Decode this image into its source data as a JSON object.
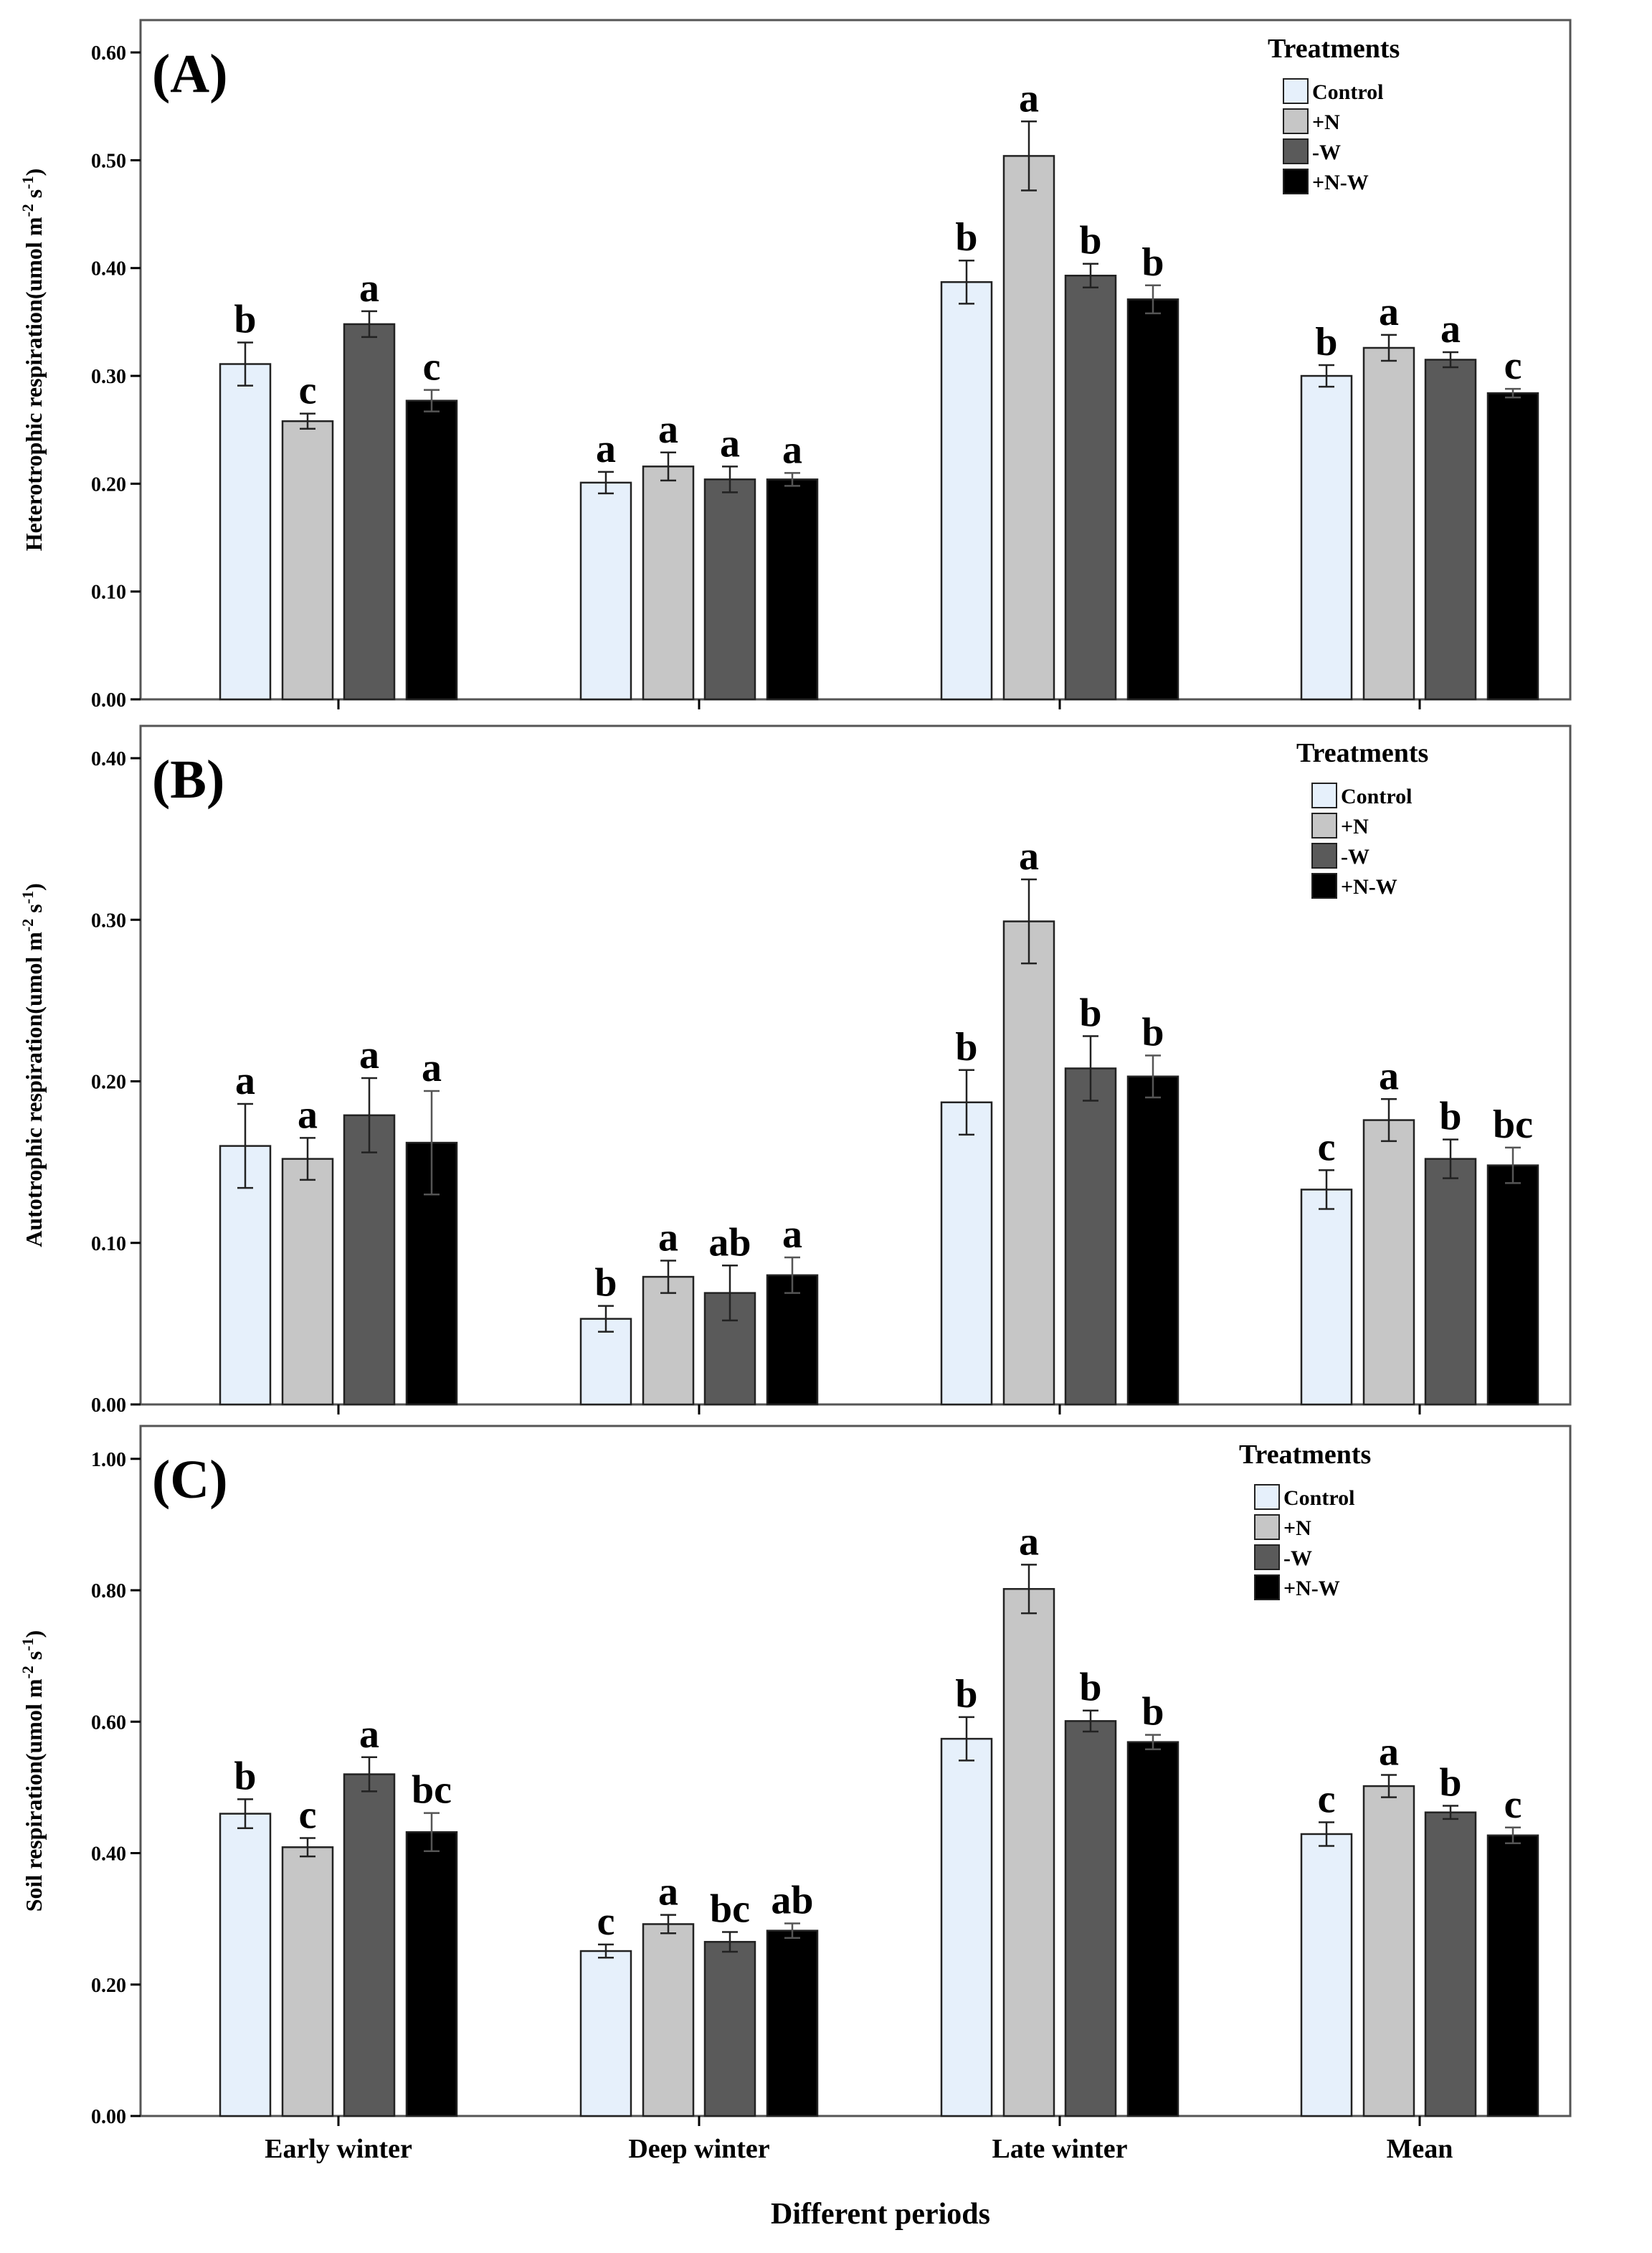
{
  "chart_data": {
    "type": "bar",
    "xlabel": "Different periods",
    "categories": [
      "Early winter",
      "Deep winter",
      "Late winter",
      "Mean"
    ],
    "legend": {
      "title": "Treatments",
      "placement": "top-right",
      "items": [
        "Control",
        "+N",
        "-W",
        "+N-W"
      ]
    },
    "colors": {
      "Control": "#e6f0fb",
      "+N": "#c6c6c6",
      "-W": "#5a5a5a",
      "+N-W": "#000000",
      "axis": "#000000",
      "frame": "#555555"
    },
    "panels": [
      {
        "panel_label": "(A)",
        "ylabel": "Heterotrophic respiration(umol m-2 s-1)",
        "ylabel_parts": [
          "Heterotrophic respiration(umol m",
          "-2",
          " s",
          "-1",
          ")"
        ],
        "ylim": [
          0,
          0.63
        ],
        "yticks": [
          "0.00",
          "0.10",
          "0.20",
          "0.30",
          "0.40",
          "0.50",
          "0.60"
        ],
        "series": [
          {
            "name": "Control",
            "values": [
              0.311,
              0.201,
              0.387,
              0.3
            ],
            "errors": [
              0.02,
              0.01,
              0.02,
              0.01
            ],
            "letters": [
              "b",
              "a",
              "b",
              "b"
            ]
          },
          {
            "name": "+N",
            "values": [
              0.258,
              0.216,
              0.504,
              0.326
            ],
            "errors": [
              0.007,
              0.013,
              0.032,
              0.012
            ],
            "letters": [
              "c",
              "a",
              "a",
              "a"
            ]
          },
          {
            "name": "-W",
            "values": [
              0.348,
              0.204,
              0.393,
              0.315
            ],
            "errors": [
              0.012,
              0.012,
              0.011,
              0.007
            ],
            "letters": [
              "a",
              "a",
              "b",
              "a"
            ]
          },
          {
            "name": "+N-W",
            "values": [
              0.277,
              0.204,
              0.371,
              0.284
            ],
            "errors": [
              0.01,
              0.006,
              0.013,
              0.004
            ],
            "letters": [
              "c",
              "a",
              "b",
              "c"
            ]
          }
        ]
      },
      {
        "panel_label": "(B)",
        "ylabel": "Autotrophic respiration(umol m-2 s-1)",
        "ylabel_parts": [
          "Autotrophic respiration(umol m",
          "-2",
          " s",
          "-1",
          ")"
        ],
        "ylim": [
          0,
          0.42
        ],
        "yticks": [
          "0.00",
          "0.10",
          "0.20",
          "0.30",
          "0.40"
        ],
        "series": [
          {
            "name": "Control",
            "values": [
              0.16,
              0.053,
              0.187,
              0.133
            ],
            "errors": [
              0.026,
              0.008,
              0.02,
              0.012
            ],
            "letters": [
              "a",
              "b",
              "b",
              "c"
            ]
          },
          {
            "name": "+N",
            "values": [
              0.152,
              0.079,
              0.299,
              0.176
            ],
            "errors": [
              0.013,
              0.01,
              0.026,
              0.013
            ],
            "letters": [
              "a",
              "a",
              "a",
              "a"
            ]
          },
          {
            "name": "-W",
            "values": [
              0.179,
              0.069,
              0.208,
              0.152
            ],
            "errors": [
              0.023,
              0.017,
              0.02,
              0.012
            ],
            "letters": [
              "a",
              "ab",
              "b",
              "b"
            ]
          },
          {
            "name": "+N-W",
            "values": [
              0.162,
              0.08,
              0.203,
              0.148
            ],
            "errors": [
              0.032,
              0.011,
              0.013,
              0.011
            ],
            "letters": [
              "a",
              "a",
              "b",
              "bc"
            ]
          }
        ]
      },
      {
        "panel_label": "(C)",
        "ylabel": "Soil respiration(umol m-2 s-1)",
        "ylabel_parts": [
          "Soil respiration(umol m",
          "-2",
          " s",
          "-1",
          ")"
        ],
        "ylim": [
          0,
          1.05
        ],
        "yticks": [
          "0.00",
          "0.20",
          "0.40",
          "0.60",
          "0.80",
          "1.00"
        ],
        "series": [
          {
            "name": "Control",
            "values": [
              0.46,
              0.251,
              0.574,
              0.429
            ],
            "errors": [
              0.022,
              0.01,
              0.033,
              0.018
            ],
            "letters": [
              "b",
              "c",
              "b",
              "c"
            ]
          },
          {
            "name": "+N",
            "values": [
              0.409,
              0.292,
              0.802,
              0.502
            ],
            "errors": [
              0.014,
              0.014,
              0.037,
              0.017
            ],
            "letters": [
              "c",
              "a",
              "a",
              "a"
            ]
          },
          {
            "name": "-W",
            "values": [
              0.52,
              0.265,
              0.601,
              0.462
            ],
            "errors": [
              0.026,
              0.015,
              0.016,
              0.01
            ],
            "letters": [
              "a",
              "bc",
              "b",
              "b"
            ]
          },
          {
            "name": "+N-W",
            "values": [
              0.432,
              0.282,
              0.569,
              0.427
            ],
            "errors": [
              0.029,
              0.011,
              0.011,
              0.012
            ],
            "letters": [
              "bc",
              "ab",
              "b",
              "c"
            ]
          }
        ]
      }
    ]
  }
}
